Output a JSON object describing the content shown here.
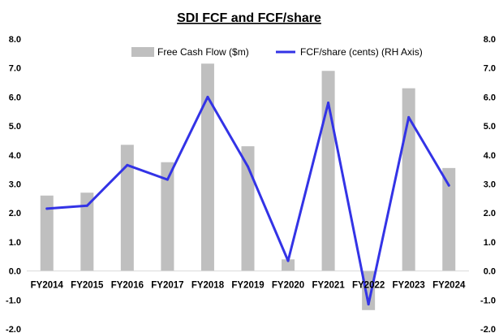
{
  "chart_data": {
    "type": "bar",
    "title": "SDI FCF and FCF/share",
    "categories": [
      "FY2014",
      "FY2015",
      "FY2016",
      "FY2017",
      "FY2018",
      "FY2019",
      "FY2020",
      "FY2021",
      "FY2022",
      "FY2023",
      "FY2024"
    ],
    "series": [
      {
        "name": "Free Cash Flow ($m)",
        "type": "bar",
        "axis": "left",
        "color": "#bfbfbf",
        "values": [
          2.6,
          2.7,
          4.35,
          3.75,
          7.15,
          4.3,
          0.4,
          6.9,
          -1.35,
          6.3,
          3.55
        ]
      },
      {
        "name": "FCF/share (cents) (RH Axis)",
        "type": "line",
        "axis": "right",
        "color": "#3333e6",
        "values": [
          2.15,
          2.25,
          3.65,
          3.15,
          6.0,
          3.6,
          0.35,
          5.8,
          -1.15,
          5.3,
          2.95
        ]
      }
    ],
    "y_left": {
      "min": -2.0,
      "max": 8.0,
      "step": 1.0,
      "tick_labels": [
        "-2.0",
        "-1.0",
        "0.0",
        "1.0",
        "2.0",
        "3.0",
        "4.0",
        "5.0",
        "6.0",
        "7.0",
        "8.0"
      ]
    },
    "y_right": {
      "min": -2.0,
      "max": 8.0,
      "step": 1.0,
      "tick_labels": [
        "-2.0",
        "-1.0",
        "0.0",
        "1.0",
        "2.0",
        "3.0",
        "4.0",
        "5.0",
        "6.0",
        "7.0",
        "8.0"
      ]
    },
    "grid": false,
    "legend_position": "top-center"
  }
}
